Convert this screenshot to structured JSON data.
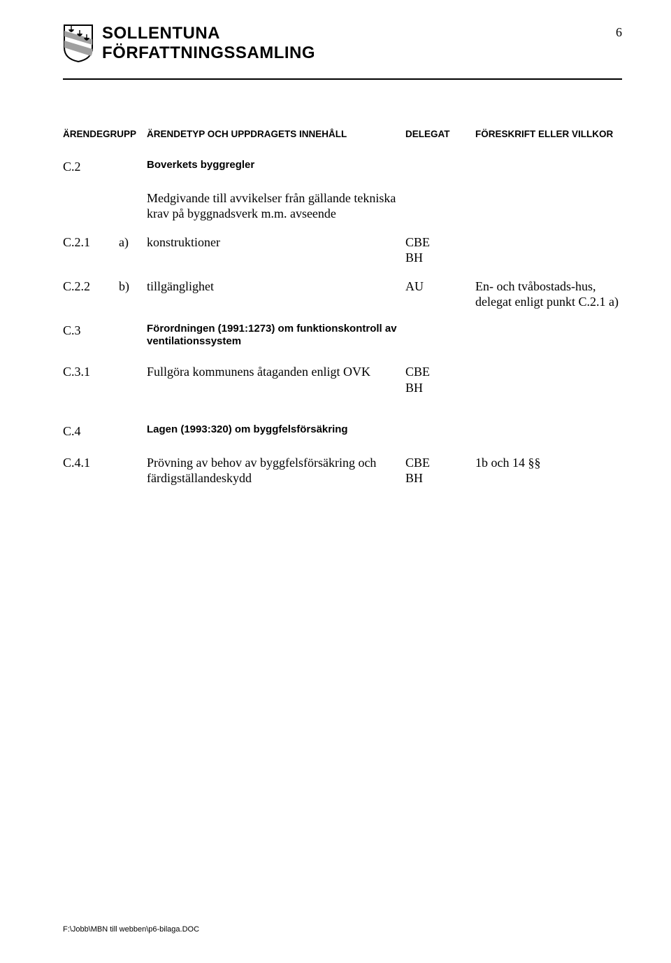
{
  "header": {
    "title_line1": "SOLLENTUNA",
    "title_line2": "FÖRFATTNINGSSAMLING",
    "page_number": "6"
  },
  "logo": {
    "shield_outline": "#000000",
    "band_fill": "#808080",
    "ship_fill": "#000000",
    "shield_bg": "#ffffff"
  },
  "table_head": {
    "col_a": "ÄRENDEGRUPP",
    "col_b": "ÄRENDETYP OCH UPPDRAGETS INNEHÅLL",
    "col_c": "DELEGAT",
    "col_d": "FÖRESKRIFT ELLER VILLKOR"
  },
  "rows": [
    {
      "type": "section",
      "num": "C.2",
      "let": "",
      "text": "Boverkets byggregler",
      "delegat": "",
      "villkor": ""
    },
    {
      "type": "indent",
      "num": "",
      "let": "",
      "text": "Medgivande till avvikelser från gällande tekniska krav på byggnadsverk m.m. avseende",
      "delegat": "",
      "villkor": ""
    },
    {
      "type": "item",
      "num": "C.2.1",
      "let": "a)",
      "text": "konstruktioner",
      "delegat": "CBE\nBH",
      "villkor": ""
    },
    {
      "type": "item",
      "num": "C.2.2",
      "let": "b)",
      "text": "tillgänglighet",
      "delegat": "AU",
      "villkor": "En- och tvåbostads-hus, delegat enligt punkt C.2.1 a)"
    },
    {
      "type": "section",
      "num": "C.3",
      "let": "",
      "text": "Förordningen (1991:1273) om funktionskontroll av ventilationssystem",
      "delegat": "",
      "villkor": ""
    },
    {
      "type": "item",
      "num": "C.3.1",
      "let": "",
      "text": "Fullgöra kommunens åtaganden enligt OVK",
      "delegat": "CBE\nBH",
      "villkor": ""
    },
    {
      "type": "spacer"
    },
    {
      "type": "section",
      "num": "C.4",
      "let": "",
      "text": "Lagen (1993:320) om byggfelsförsäkring",
      "delegat": "",
      "villkor": ""
    },
    {
      "type": "item",
      "num": "C.4.1",
      "let": "",
      "text": "Prövning av behov av byggfelsförsäkring och färdigställandeskydd",
      "delegat": "CBE\nBH",
      "villkor": "1b och 14 §§"
    }
  ],
  "footer": "F:\\Jobb\\MBN till webben\\p6-bilaga.DOC"
}
